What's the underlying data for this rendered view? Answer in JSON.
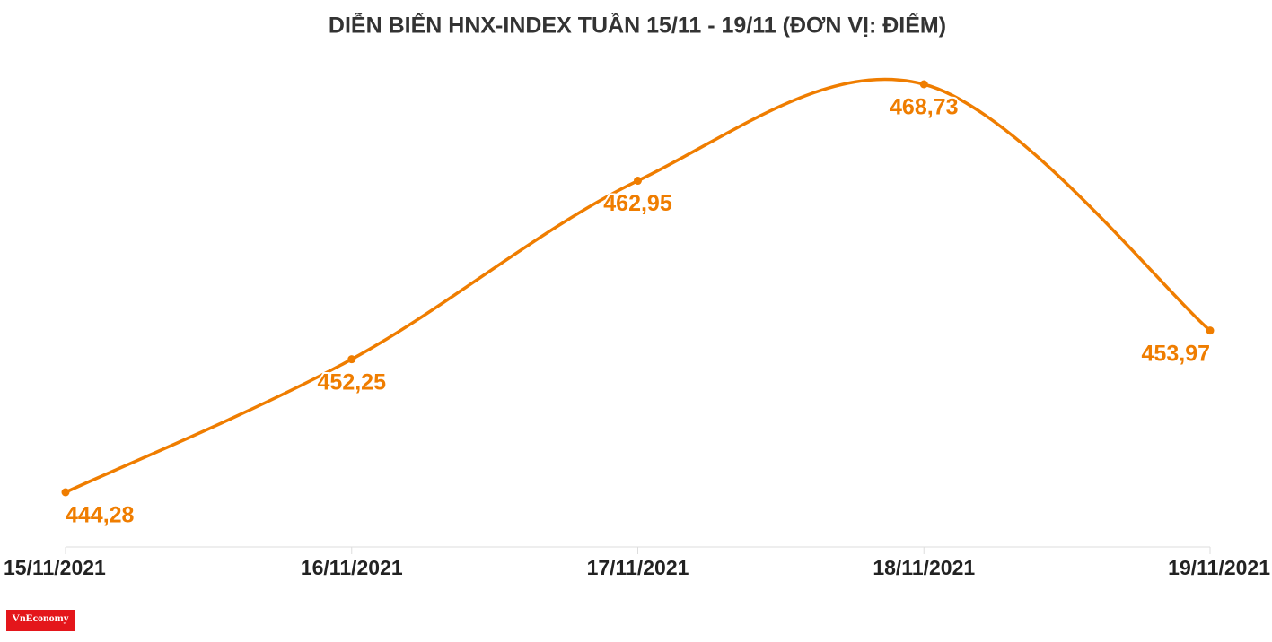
{
  "chart_data": {
    "type": "line",
    "title": "DIỄN BIẾN HNX-INDEX TUẦN 15/11 - 19/11 (ĐƠN VỊ: ĐIỂM)",
    "categories": [
      "15/11/2021",
      "16/11/2021",
      "17/11/2021",
      "18/11/2021",
      "19/11/2021"
    ],
    "values": [
      444.28,
      452.25,
      462.95,
      468.73,
      453.97
    ],
    "value_labels": [
      "444,28",
      "452,25",
      "462,95",
      "468,73",
      "453,97"
    ],
    "color": "#ef7d00"
  },
  "logo": "VnEconomy"
}
